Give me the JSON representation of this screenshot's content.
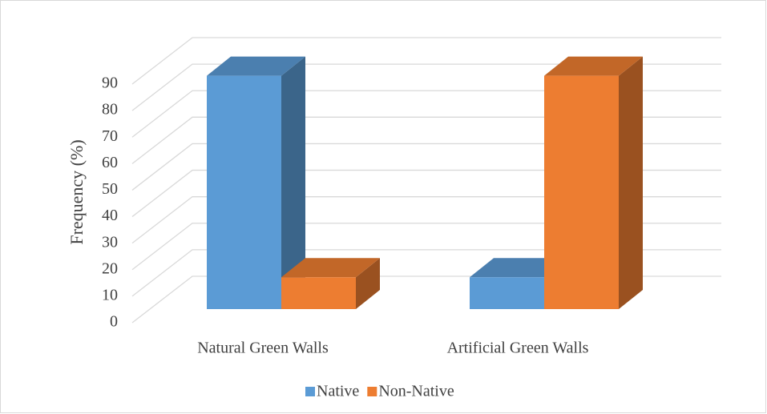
{
  "chart_data": {
    "type": "bar3d",
    "y_label": "Frequency (%)",
    "categories": [
      "Natural Green Walls",
      "Artificial Green Walls"
    ],
    "series": [
      {
        "name": "Native",
        "color": "#5b9bd5",
        "values": [
          88,
          12
        ]
      },
      {
        "name": "Non-Native",
        "color": "#ed7d31",
        "values": [
          12,
          88
        ]
      }
    ],
    "ylim": [
      0,
      90
    ],
    "yticks": [
      0,
      10,
      20,
      30,
      40,
      50,
      60,
      70,
      80,
      90
    ],
    "grid": true,
    "legend": "bottom"
  }
}
